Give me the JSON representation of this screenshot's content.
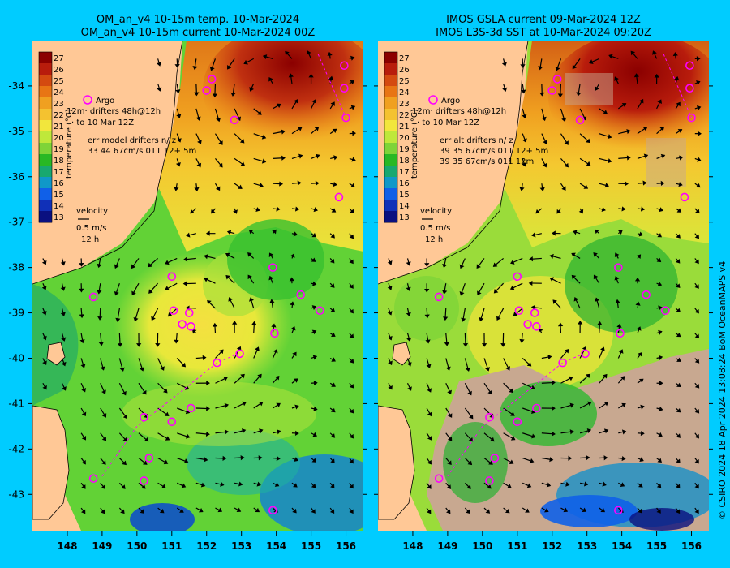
{
  "left": {
    "title_line1": "OM_an_v4  10-15m temp. 10-Mar-2024",
    "title_line2": "OM_an_v4  10-15m current 10-Mar-2024 00Z",
    "legend": {
      "argo": "Argo",
      "drifters": "12m· drifters 48h@12h",
      "to_date": "· to 10 Mar 12Z",
      "err_line1": "err model drifters n/ z",
      "err_line2": "33 44 67cm/s 011 12+ 5m"
    }
  },
  "right": {
    "title_line1": "IMOS GSLA current 09-Mar-2024 12Z",
    "title_line2": "IMOS L3S-3d SST at 10-Mar-2024 09:20Z",
    "legend": {
      "argo": "Argo",
      "drifters": "12m· drifters 48h@12h",
      "to_date": "· to 10 Mar 12Z",
      "err_line1": "err alt drifters n/ z",
      "err_line2": "39 35 67cm/s 011 12+ 5m",
      "err_line3": "39 35 67cm/s 011 12m"
    }
  },
  "colorbar": {
    "label": "temperature (°C)",
    "ticks": [
      "27",
      "26",
      "25",
      "24",
      "23",
      "22",
      "21",
      "20",
      "19",
      "18",
      "17",
      "16",
      "15",
      "14",
      "13"
    ],
    "colors": [
      "#8b0000",
      "#b81c0c",
      "#d44a10",
      "#e87514",
      "#f0a020",
      "#f4c230",
      "#f2e63c",
      "#bfe83a",
      "#7ed438",
      "#28b824",
      "#18a870",
      "#1098c8",
      "#1060e8",
      "#1030b8",
      "#0a1080"
    ]
  },
  "velocity_legend": {
    "title": "velocity",
    "speed": "0.5 m/s",
    "period": "12 h"
  },
  "y_axis": {
    "ticks": [
      "-34",
      "-35",
      "-36",
      "-37",
      "-38",
      "-39",
      "-40",
      "-41",
      "-42",
      "-43"
    ],
    "range": [
      -43.8,
      -33.0
    ]
  },
  "x_axis": {
    "ticks": [
      "148",
      "149",
      "150",
      "151",
      "152",
      "153",
      "154",
      "155",
      "156"
    ],
    "range": [
      147.0,
      156.5
    ]
  },
  "argo_floats": [
    [
      148.75,
      -38.65
    ],
    [
      151.05,
      -38.95
    ],
    [
      151.3,
      -39.25
    ],
    [
      151.5,
      -39.0
    ],
    [
      151.55,
      -39.3
    ],
    [
      151.0,
      -38.2
    ],
    [
      152.3,
      -40.1
    ],
    [
      150.2,
      -41.3
    ],
    [
      151.0,
      -41.4
    ],
    [
      151.55,
      -41.1
    ],
    [
      148.75,
      -42.65
    ],
    [
      150.2,
      -42.7
    ],
    [
      150.35,
      -42.2
    ],
    [
      153.9,
      -38.0
    ],
    [
      153.95,
      -39.45
    ],
    [
      154.7,
      -38.6
    ],
    [
      155.25,
      -38.95
    ],
    [
      152.0,
      -34.1
    ],
    [
      152.15,
      -33.85
    ],
    [
      152.8,
      -34.75
    ],
    [
      155.95,
      -33.55
    ],
    [
      155.95,
      -34.05
    ],
    [
      156.0,
      -34.7
    ],
    [
      155.8,
      -36.45
    ],
    [
      153.9,
      -43.35
    ],
    [
      152.95,
      -39.9
    ]
  ],
  "credit": "© CSIRO 2024   18 Apr 2024 13:08:24 BoM OceanMAPS v4",
  "colors": {
    "background": "#00ccff",
    "land": "#ffc896",
    "argo": "#ff00ff",
    "drifter": "#ff00ff",
    "cloud": "#c8a890"
  }
}
